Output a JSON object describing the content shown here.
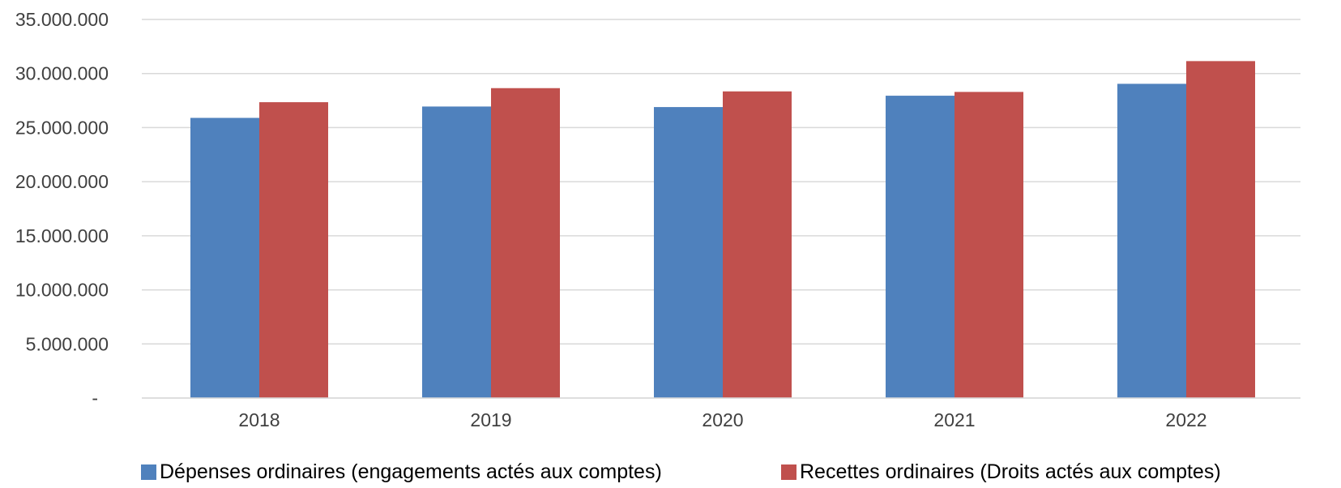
{
  "chart_data": {
    "type": "bar",
    "title": "",
    "xlabel": "",
    "ylabel": "",
    "categories": [
      "2018",
      "2019",
      "2020",
      "2021",
      "2022"
    ],
    "series": [
      {
        "name": "Dépenses ordinaires (engagements actés aux comptes)",
        "color": "#4f81bd",
        "values": [
          25900000,
          26950000,
          26900000,
          27950000,
          29050000
        ]
      },
      {
        "name": "Recettes ordinaires (Droits actés aux comptes)",
        "color": "#c0504d",
        "values": [
          27350000,
          28650000,
          28350000,
          28300000,
          31150000
        ]
      }
    ],
    "ylim": [
      0,
      35000000
    ],
    "yticks": [
      0,
      5000000,
      10000000,
      15000000,
      20000000,
      25000000,
      30000000,
      35000000
    ],
    "ytick_labels": [
      "-",
      "5.000.000",
      "10.000.000",
      "15.000.000",
      "20.000.000",
      "25.000.000",
      "30.000.000",
      "35.000.000"
    ],
    "grid": true,
    "legend_position": "bottom"
  }
}
